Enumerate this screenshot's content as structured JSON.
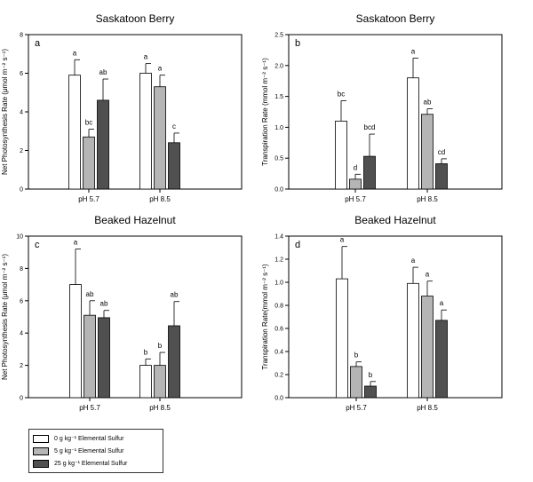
{
  "chart_data": [
    {
      "type": "bar",
      "title": "Saskatoon Berry",
      "panel_label": "a",
      "ylabel": "Net Photosynthesis Rate (μmol m⁻² s⁻¹)",
      "ylim": [
        0,
        8
      ],
      "yticks": [
        "0",
        "2",
        "4",
        "6",
        "8"
      ],
      "categories": [
        "pH 5.7",
        "pH 8.5"
      ],
      "series": [
        {
          "values": [
            5.9,
            6.0
          ],
          "errors": [
            0.8,
            0.5
          ],
          "letters": [
            "a",
            "a"
          ]
        },
        {
          "values": [
            2.7,
            5.3
          ],
          "errors": [
            0.4,
            0.6
          ],
          "letters": [
            "bc",
            "a"
          ]
        },
        {
          "values": [
            4.6,
            2.4
          ],
          "errors": [
            1.1,
            0.5
          ],
          "letters": [
            "ab",
            "c"
          ]
        }
      ]
    },
    {
      "type": "bar",
      "title": "Saskatoon Berry",
      "panel_label": "b",
      "ylabel": "Transpiration Rate (mmol m⁻² s⁻¹)",
      "ylim": [
        0,
        2.5
      ],
      "yticks": [
        "0.0",
        "0.5",
        "1.0",
        "1.5",
        "2.0",
        "2.5"
      ],
      "categories": [
        "pH 5.7",
        "pH 8.5"
      ],
      "series": [
        {
          "values": [
            1.1,
            1.8
          ],
          "errors": [
            0.33,
            0.32
          ],
          "letters": [
            "bc",
            "a"
          ]
        },
        {
          "values": [
            0.16,
            1.21
          ],
          "errors": [
            0.08,
            0.09
          ],
          "letters": [
            "d",
            "ab"
          ]
        },
        {
          "values": [
            0.53,
            0.41
          ],
          "errors": [
            0.36,
            0.08
          ],
          "letters": [
            "bcd",
            "cd"
          ]
        }
      ]
    },
    {
      "type": "bar",
      "title": "Beaked Hazelnut",
      "panel_label": "c",
      "ylabel": "Net Photosynthesis Rate (μmol m⁻² s⁻¹)",
      "ylim": [
        0,
        10
      ],
      "yticks": [
        "0",
        "2",
        "4",
        "6",
        "8",
        "10"
      ],
      "categories": [
        "pH 5.7",
        "pH 8.5"
      ],
      "series": [
        {
          "values": [
            7.0,
            2.0
          ],
          "errors": [
            2.2,
            0.4
          ],
          "letters": [
            "a",
            "b"
          ]
        },
        {
          "values": [
            5.1,
            2.0
          ],
          "errors": [
            0.9,
            0.8
          ],
          "letters": [
            "ab",
            "b"
          ]
        },
        {
          "values": [
            4.95,
            4.45
          ],
          "errors": [
            0.45,
            1.5
          ],
          "letters": [
            "ab",
            "ab"
          ]
        }
      ]
    },
    {
      "type": "bar",
      "title": "Beaked Hazelnut",
      "panel_label": "d",
      "ylabel": "Transpiration Rate(mmol m⁻² s⁻¹)",
      "ylim": [
        0,
        1.4
      ],
      "yticks": [
        "0.0",
        "0.2",
        "0.4",
        "0.6",
        "0.8",
        "1.0",
        "1.2",
        "1.4"
      ],
      "categories": [
        "pH 5.7",
        "pH 8.5"
      ],
      "series": [
        {
          "values": [
            1.03,
            0.99
          ],
          "errors": [
            0.28,
            0.14
          ],
          "letters": [
            "a",
            "a"
          ]
        },
        {
          "values": [
            0.27,
            0.88
          ],
          "errors": [
            0.04,
            0.13
          ],
          "letters": [
            "b",
            "a"
          ]
        },
        {
          "values": [
            0.1,
            0.67
          ],
          "errors": [
            0.04,
            0.09
          ],
          "letters": [
            "b",
            "a"
          ]
        }
      ]
    }
  ],
  "legend": {
    "items": [
      {
        "label": "0 g kg⁻¹ Elemental Sulfur",
        "color": "#ffffff"
      },
      {
        "label": "5 g kg⁻¹ Elemental Sulfur",
        "color": "#b5b5b5"
      },
      {
        "label": "25 g kg⁻¹ Elemental Sulfur",
        "color": "#505050"
      }
    ]
  }
}
